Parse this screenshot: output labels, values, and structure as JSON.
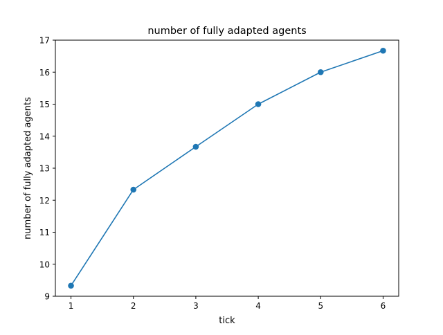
{
  "chart_data": {
    "type": "line",
    "title": "number of fully adapted agents",
    "xlabel": "tick",
    "ylabel": "number of fully adapted agents",
    "x": [
      1,
      2,
      3,
      4,
      5,
      6
    ],
    "series": [
      {
        "values": [
          9.33,
          12.33,
          13.67,
          15.0,
          16.0,
          16.67
        ]
      }
    ],
    "xticks": [
      "1",
      "2",
      "3",
      "4",
      "5",
      "6"
    ],
    "yticks": [
      "9",
      "10",
      "11",
      "12",
      "13",
      "14",
      "15",
      "16",
      "17"
    ],
    "xlim": [
      0.75,
      6.25
    ],
    "ylim": [
      9.0,
      17.0
    ],
    "grid": false,
    "legend": "none",
    "colors": {
      "line": "#1f77b4",
      "axes": "#000000",
      "background": "#ffffff"
    }
  }
}
